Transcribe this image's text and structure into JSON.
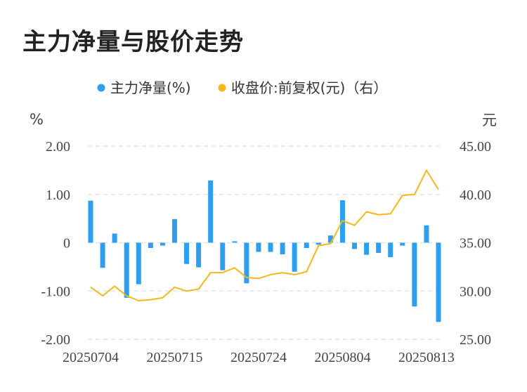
{
  "title": "主力净量与股价走势",
  "colors": {
    "bar": "#2e9ef0",
    "line": "#f4b81c",
    "grid": "#e4e4e4"
  },
  "chart_data": {
    "type": "bar+line",
    "legend": [
      {
        "name": "主力净量(%)",
        "color": "#2e9ef0"
      },
      {
        "name": "收盘价:前复权(元)（右）",
        "color": "#f4b81c"
      }
    ],
    "left_axis": {
      "unit": "%",
      "ylim": [
        -2,
        2
      ],
      "ticks": [
        "2.00",
        "1.00",
        "0",
        "-1.00",
        "-2.00"
      ]
    },
    "right_axis": {
      "unit": "元",
      "ylim": [
        25,
        45
      ],
      "ticks": [
        "45.00",
        "40.00",
        "35.00",
        "30.00",
        "25.00"
      ]
    },
    "x_tick_labels": [
      "20250704",
      "20250715",
      "20250724",
      "20250804",
      "20250813"
    ],
    "x_tick_indices": [
      0,
      7,
      14,
      21,
      28
    ],
    "series": [
      {
        "name": "主力净量(%)",
        "type": "bar",
        "values": [
          0.87,
          -0.52,
          0.19,
          -1.14,
          -0.86,
          -0.11,
          -0.06,
          0.49,
          -0.44,
          -0.51,
          1.29,
          -0.57,
          0.03,
          -0.84,
          -0.19,
          -0.19,
          -0.24,
          -0.6,
          -0.11,
          -0.04,
          0.15,
          0.88,
          -0.13,
          -0.25,
          -0.21,
          -0.3,
          -0.06,
          -1.32,
          0.36,
          -1.64
        ]
      },
      {
        "name": "收盘价:前复权(元)（右）",
        "type": "line",
        "values": [
          30.4,
          29.5,
          30.5,
          29.5,
          29.0,
          29.1,
          29.3,
          30.4,
          30.0,
          30.2,
          31.9,
          31.9,
          32.4,
          31.4,
          31.3,
          31.7,
          31.9,
          31.7,
          32.0,
          34.7,
          34.9,
          37.3,
          36.8,
          38.2,
          37.9,
          38.0,
          39.9,
          40.0,
          42.5,
          40.5
        ]
      }
    ]
  }
}
